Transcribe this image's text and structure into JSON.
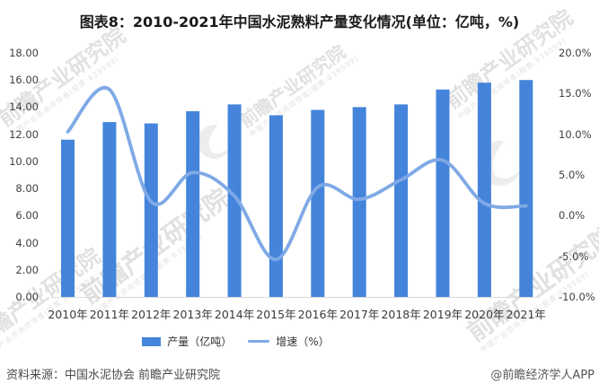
{
  "chart_data": {
    "type": "bar",
    "title": "图表8：2010-2021年中国水泥熟料产量变化情况(单位：亿吨，%)",
    "categories": [
      "2010年",
      "2011年",
      "2012年",
      "2013年",
      "2014年",
      "2015年",
      "2016年",
      "2017年",
      "2018年",
      "2019年",
      "2020年",
      "2021年"
    ],
    "series": [
      {
        "name": "产量（亿吨）",
        "type": "bar",
        "axis": "left",
        "color": "#4484DA",
        "values": [
          11.6,
          12.9,
          12.8,
          13.7,
          14.2,
          13.4,
          13.8,
          14.0,
          14.2,
          15.3,
          15.8,
          16.0
        ]
      },
      {
        "name": "增速（%）",
        "type": "line",
        "axis": "right",
        "color": "#7FA9E6",
        "values": [
          10.3,
          15.5,
          1.7,
          5.3,
          2.4,
          -5.4,
          3.5,
          2.0,
          4.4,
          6.8,
          1.5,
          1.2
        ]
      }
    ],
    "y_left": {
      "min": 0,
      "max": 18,
      "tick_labels": [
        "18.00",
        "16.00",
        "14.00",
        "12.00",
        "10.00",
        "8.00",
        "6.00",
        "4.00",
        "2.00",
        "0.00"
      ]
    },
    "y_right": {
      "min": -10,
      "max": 20,
      "tick_labels": [
        "20.0%",
        "15.0%",
        "10.0%",
        "5.0%",
        "0.0%",
        "-5.0%",
        "-10.0%"
      ]
    },
    "legend_position": "bottom",
    "grid": false,
    "axis_line_color": "#d9d9d9"
  },
  "footer": {
    "source": "资料来源：中国水泥协会 前瞻产业研究院",
    "credit": "@前瞻经济学人APP"
  },
  "watermark": {
    "text": "前瞻产业研究院",
    "subtext": "中国产业咨询领导者(股票:839599)"
  }
}
